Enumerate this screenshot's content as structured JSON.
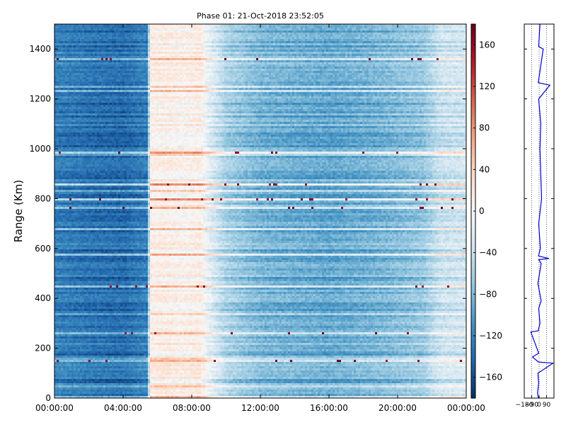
{
  "chart_data": [
    {
      "type": "heatmap",
      "title": "Phase 01: 21-Oct-2018 23:52:05",
      "xlabel": "",
      "ylabel": "Range (Km)",
      "xlim": [
        "00:00:00",
        "24:00:00"
      ],
      "ylim": [
        0,
        1500
      ],
      "x_ticks": [
        "00:00:00",
        "04:00:00",
        "08:00:00",
        "12:00:00",
        "16:00:00",
        "20:00:00",
        "00:00:00"
      ],
      "y_ticks": [
        0,
        200,
        400,
        600,
        800,
        1000,
        1200,
        1400
      ],
      "colormap": "RdBu_r",
      "color_range": [
        -180,
        180
      ],
      "colorbar_ticks": [
        160,
        120,
        80,
        40,
        0,
        -40,
        -80,
        -120,
        -160
      ],
      "strong_range_lines_km": [
        150,
        265,
        455,
        770,
        800,
        860,
        990,
        1360
      ],
      "time_columns": [
        {
          "hour": 0.0,
          "phase": -125
        },
        {
          "hour": 2.0,
          "phase": -135
        },
        {
          "hour": 4.0,
          "phase": -140
        },
        {
          "hour": 5.4,
          "phase": -125
        },
        {
          "hour": 5.6,
          "phase": 8
        },
        {
          "hour": 6.5,
          "phase": 12
        },
        {
          "hour": 7.5,
          "phase": 5
        },
        {
          "hour": 8.5,
          "phase": 12
        },
        {
          "hour": 9.0,
          "phase": -20
        },
        {
          "hour": 10.0,
          "phase": -60
        },
        {
          "hour": 12.0,
          "phase": -85
        },
        {
          "hour": 16.0,
          "phase": -95
        },
        {
          "hour": 19.0,
          "phase": -85
        },
        {
          "hour": 21.5,
          "phase": -70
        },
        {
          "hour": 22.5,
          "phase": -40
        },
        {
          "hour": 24.0,
          "phase": -35
        }
      ]
    },
    {
      "type": "line",
      "title": "",
      "xlabel": "",
      "ylabel": "",
      "xlim": [
        -180,
        180
      ],
      "ylim": [
        0,
        1500
      ],
      "x_ticks": [
        -180,
        -90,
        0,
        90
      ],
      "color": "#0000cc",
      "series": [
        {
          "points": [
            {
              "range": 0,
              "phase": -8
            },
            {
              "range": 20,
              "phase": -20
            },
            {
              "range": 60,
              "phase": -5
            },
            {
              "range": 100,
              "phase": -15
            },
            {
              "range": 140,
              "phase": 170
            },
            {
              "range": 145,
              "phase": -10
            },
            {
              "range": 165,
              "phase": -80
            },
            {
              "range": 180,
              "phase": -5
            },
            {
              "range": 265,
              "phase": -100
            },
            {
              "range": 270,
              "phase": -10
            },
            {
              "range": 300,
              "phase": 10
            },
            {
              "range": 360,
              "phase": -5
            },
            {
              "range": 390,
              "phase": 25
            },
            {
              "range": 460,
              "phase": -15
            },
            {
              "range": 540,
              "phase": 25
            },
            {
              "range": 555,
              "phase": -5
            },
            {
              "range": 560,
              "phase": 120
            },
            {
              "range": 570,
              "phase": -8
            },
            {
              "range": 600,
              "phase": 15
            },
            {
              "range": 700,
              "phase": -5
            },
            {
              "range": 800,
              "phase": 30
            },
            {
              "range": 900,
              "phase": 20
            },
            {
              "range": 1000,
              "phase": 10
            },
            {
              "range": 1100,
              "phase": 20
            },
            {
              "range": 1200,
              "phase": -5
            },
            {
              "range": 1255,
              "phase": 130
            },
            {
              "range": 1265,
              "phase": -10
            },
            {
              "range": 1300,
              "phase": 5
            },
            {
              "range": 1400,
              "phase": 50
            },
            {
              "range": 1410,
              "phase": -5
            },
            {
              "range": 1500,
              "phase": 10
            }
          ]
        }
      ]
    }
  ]
}
